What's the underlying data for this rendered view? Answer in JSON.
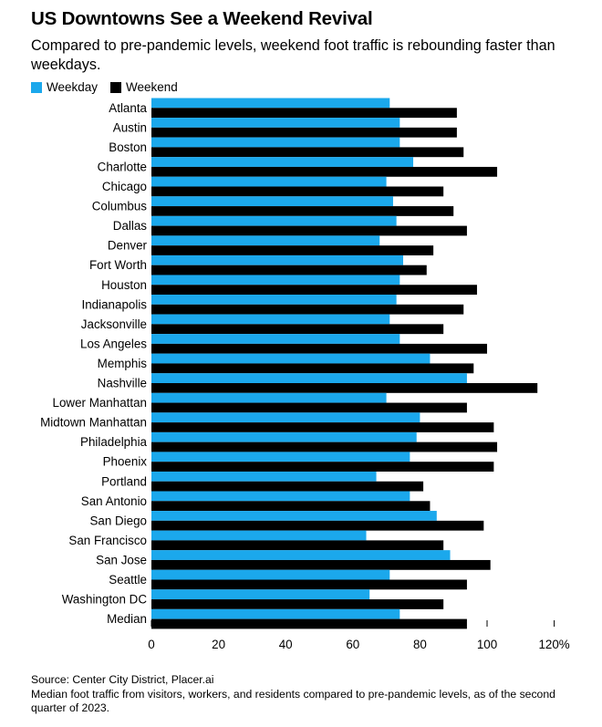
{
  "title": "US Downtowns See a Weekend Revival",
  "subtitle": "Compared to pre-pandemic levels, weekend foot traffic is rebounding faster than weekdays.",
  "colors": {
    "weekday": "#1ba8ec",
    "weekend": "#000000",
    "axis": "#000000"
  },
  "source": "Source: Center City District, Placer.ai",
  "note": "Median foot traffic from visitors, workers, and residents compared to pre-pandemic levels, as of the second quarter of 2023.",
  "chart_data": {
    "type": "bar",
    "orientation": "horizontal",
    "categories": [
      "Atlanta",
      "Austin",
      "Boston",
      "Charlotte",
      "Chicago",
      "Columbus",
      "Dallas",
      "Denver",
      "Fort Worth",
      "Houston",
      "Indianapolis",
      "Jacksonville",
      "Los Angeles",
      "Memphis",
      "Nashville",
      "Lower Manhattan",
      "Midtown Manhattan",
      "Philadelphia",
      "Phoenix",
      "Portland",
      "San Antonio",
      "San Diego",
      "San Francisco",
      "San Jose",
      "Seattle",
      "Washington DC",
      "Median"
    ],
    "series": [
      {
        "name": "Weekday",
        "values": [
          71,
          74,
          74,
          78,
          70,
          72,
          73,
          68,
          75,
          74,
          73,
          71,
          74,
          83,
          94,
          70,
          80,
          79,
          77,
          67,
          77,
          85,
          64,
          89,
          71,
          65,
          74
        ]
      },
      {
        "name": "Weekend",
        "values": [
          91,
          91,
          93,
          103,
          87,
          90,
          94,
          84,
          82,
          97,
          93,
          87,
          100,
          96,
          115,
          94,
          102,
          103,
          102,
          81,
          83,
          99,
          87,
          101,
          94,
          87,
          94
        ]
      }
    ],
    "xlim": [
      0,
      120
    ],
    "xticks": [
      "0",
      "20",
      "40",
      "60",
      "80",
      "100",
      "120%"
    ],
    "legend": "top-left",
    "grid": false
  }
}
